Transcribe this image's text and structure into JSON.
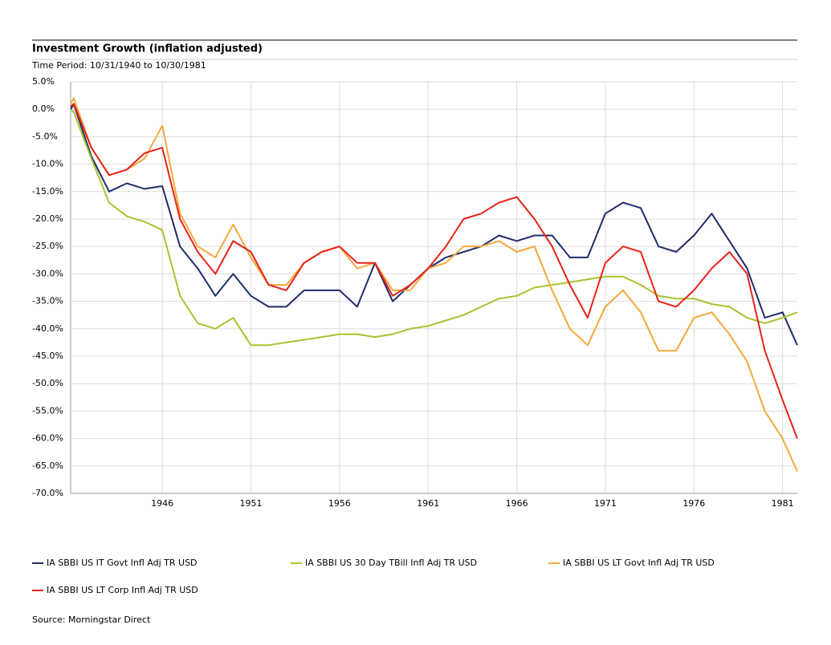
{
  "chart_data": {
    "type": "line",
    "title": "Investment Growth (inflation adjusted)",
    "subtitle": "Time Period: 10/31/1940 to 10/30/1981",
    "source": "Source: Morningstar Direct",
    "x": [
      1940.83,
      1941,
      1942,
      1943,
      1944,
      1945,
      1946,
      1947,
      1948,
      1949,
      1950,
      1951,
      1952,
      1953,
      1954,
      1955,
      1956,
      1957,
      1958,
      1959,
      1960,
      1961,
      1962,
      1963,
      1964,
      1965,
      1966,
      1967,
      1968,
      1969,
      1970,
      1971,
      1972,
      1973,
      1974,
      1975,
      1976,
      1977,
      1978,
      1979,
      1980,
      1981,
      1981.83
    ],
    "xlim": [
      1940.83,
      1981.83
    ],
    "xticks": [
      1946,
      1951,
      1956,
      1961,
      1966,
      1971,
      1976,
      1981
    ],
    "ylim": [
      -70,
      5
    ],
    "yticks": [
      {
        "value": 5,
        "label": "5.0%"
      },
      {
        "value": 0,
        "label": "0.0%"
      },
      {
        "value": -5,
        "label": "-5.0%"
      },
      {
        "value": -10,
        "label": "-10.0%"
      },
      {
        "value": -15,
        "label": "-15.0%"
      },
      {
        "value": -20,
        "label": "-20.0%"
      },
      {
        "value": -25,
        "label": "-25.0%"
      },
      {
        "value": -30,
        "label": "-30.0%"
      },
      {
        "value": -35,
        "label": "-35.0%"
      },
      {
        "value": -40,
        "label": "-40.0%"
      },
      {
        "value": -45,
        "label": "-45.0%"
      },
      {
        "value": -50,
        "label": "-50.0%"
      },
      {
        "value": -55,
        "label": "-55.0%"
      },
      {
        "value": -60,
        "label": "-60.0%"
      },
      {
        "value": -65,
        "label": "-65.0%"
      },
      {
        "value": -70,
        "label": "-70.0%"
      }
    ],
    "grid": true,
    "series": [
      {
        "name": "IA SBBI US IT Govt Infl Adj TR USD",
        "color": "#1f2d6b",
        "values": [
          0,
          0.9,
          -8.6,
          -15,
          -13.5,
          -14.5,
          -14,
          -25,
          -29,
          -34,
          -30,
          -34,
          -36,
          -36,
          -33,
          -33,
          -33,
          -36,
          -28,
          -35,
          -32,
          -29,
          -27,
          -26,
          -25,
          -23,
          -24,
          -23,
          -23,
          -27,
          -27,
          -19,
          -17,
          -18,
          -25,
          -26,
          -23,
          -19,
          -24,
          -29,
          -38,
          -37,
          -43
        ]
      },
      {
        "name": "IA SBBI US 30 Day TBill Infl Adj TR USD",
        "color": "#a5c531",
        "values": [
          0,
          -0.5,
          -9,
          -17,
          -19.5,
          -20.5,
          -22,
          -34,
          -39,
          -40,
          -38,
          -43,
          -43,
          -42.5,
          -42,
          -41.5,
          -41,
          -41,
          -41.5,
          -41,
          -40,
          -39.5,
          -38.5,
          -37.5,
          -36,
          -34.5,
          -34,
          -32.5,
          -32,
          -31.5,
          -31,
          -30.5,
          -30.5,
          -32,
          -34,
          -34.5,
          -34.5,
          -35.5,
          -36,
          -38,
          -39,
          -38,
          -37
        ]
      },
      {
        "name": "IA SBBI US LT Govt Infl Adj TR USD",
        "color": "#f5a83c",
        "values": [
          1,
          2,
          -7,
          -12,
          -11,
          -9,
          -3,
          -19,
          -25,
          -27,
          -21,
          -27,
          -32,
          -32,
          -28,
          -26,
          -25,
          -29,
          -28,
          -33,
          -33,
          -29,
          -28,
          -25,
          -25,
          -24,
          -26,
          -25,
          -33,
          -40,
          -43,
          -36,
          -33,
          -37,
          -44,
          -44,
          -38,
          -37,
          -41,
          -46,
          -55,
          -60,
          -66
        ]
      },
      {
        "name": "IA SBBI US LT Corp Infl Adj TR USD",
        "color": "#e8231a",
        "values": [
          0.5,
          1,
          -7,
          -12,
          -11,
          -8,
          -7,
          -20,
          -26,
          -30,
          -24,
          -26,
          -32,
          -33,
          -28,
          -26,
          -25,
          -28,
          -28,
          -34,
          -32,
          -29,
          -25,
          -20,
          -19,
          -17,
          -16,
          -20,
          -25,
          -32,
          -38,
          -28,
          -25,
          -26,
          -35,
          -36,
          -33,
          -29,
          -26,
          -30,
          -44,
          -53,
          -60
        ]
      }
    ]
  }
}
